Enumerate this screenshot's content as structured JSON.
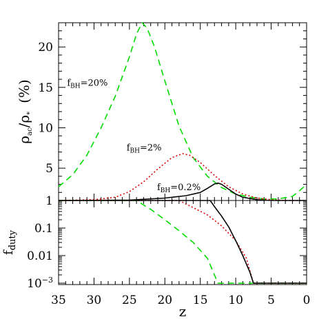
{
  "chart_data": [
    {
      "type": "line",
      "panel": "top",
      "ylabel_main": "ρ",
      "ylabel_sub1": "ac",
      "ylabel_mid": "/ρ",
      "ylabel_sub2": "*",
      "ylabel_unit": "(%)",
      "xlim": [
        35,
        0
      ],
      "ylim": [
        1,
        23
      ],
      "yticks": [
        {
          "value": 1,
          "label": "1"
        },
        {
          "value": 5,
          "label": "5"
        },
        {
          "value": 10,
          "label": "10"
        },
        {
          "value": 15,
          "label": "15"
        },
        {
          "value": 20,
          "label": "20"
        }
      ],
      "annotations": [
        {
          "main": "f",
          "sub": "BH",
          "rest": "=20%",
          "x": 33.8,
          "y": 15.2
        },
        {
          "main": "f",
          "sub": "BH",
          "rest": "=2%",
          "x": 25.4,
          "y": 7.2
        },
        {
          "main": "f",
          "sub": "BH",
          "rest": "=0.2%",
          "x": 21.1,
          "y": 2.3
        }
      ],
      "series": [
        {
          "color": "#00dd00",
          "dash": "9,6",
          "x": [
            35,
            33,
            31,
            29,
            27,
            25,
            24,
            23.2,
            22.5,
            21.5,
            20,
            18,
            16,
            14,
            12,
            10,
            8,
            6,
            4,
            2,
            1,
            0
          ],
          "y": [
            2.7,
            4.2,
            6.6,
            10.0,
            13.9,
            18.8,
            21.6,
            23.0,
            22.3,
            20.1,
            15.8,
            10.2,
            6.3,
            4.0,
            2.6,
            1.8,
            1.4,
            1.2,
            1.2,
            1.5,
            2.2,
            3.0
          ]
        },
        {
          "color": "#dd0000",
          "dash": "2,3",
          "x": [
            35,
            30,
            27,
            25,
            23,
            21,
            19,
            17.5,
            16.5,
            15,
            13,
            11,
            9,
            7,
            5,
            3,
            1,
            0
          ],
          "y": [
            1.0,
            1.1,
            1.4,
            2.1,
            3.3,
            4.9,
            6.3,
            6.8,
            6.6,
            5.7,
            4.1,
            2.7,
            1.8,
            1.3,
            1.1,
            1.0,
            1.0,
            1.0
          ]
        },
        {
          "color": "#000000",
          "dash": "",
          "x": [
            35,
            25,
            20,
            17,
            15,
            14,
            13,
            12.5,
            12,
            11,
            10,
            9,
            7,
            5,
            3,
            1,
            0
          ],
          "y": [
            1.0,
            1.05,
            1.3,
            1.6,
            2.0,
            2.5,
            3.05,
            3.15,
            3.0,
            2.4,
            1.8,
            1.4,
            1.1,
            1.0,
            1.0,
            1.0,
            1.0
          ]
        }
      ]
    },
    {
      "type": "line",
      "panel": "bottom",
      "xlabel": "z",
      "ylabel_main": "f",
      "ylabel_sub1": "duty",
      "xlim": [
        35,
        0
      ],
      "ylim_log10": [
        -3.05,
        0
      ],
      "xticks": [
        {
          "value": 35,
          "label": "35"
        },
        {
          "value": 30,
          "label": "30"
        },
        {
          "value": 25,
          "label": "25"
        },
        {
          "value": 20,
          "label": "20"
        },
        {
          "value": 15,
          "label": "15"
        },
        {
          "value": 10,
          "label": "10"
        },
        {
          "value": 5,
          "label": "5"
        },
        {
          "value": 0,
          "label": "0"
        }
      ],
      "yticks": [
        {
          "value": 0.1,
          "label": "0.1"
        },
        {
          "value": 0.01,
          "label": "0.01"
        }
      ],
      "ytick_exp": {
        "value": 0.001,
        "base": "10",
        "exp": "−3"
      },
      "series": [
        {
          "color": "#00dd00",
          "dash": "9,6",
          "x": [
            35,
            24,
            22,
            20,
            18,
            16,
            14,
            12.5,
            0
          ],
          "y": [
            1,
            1,
            0.48,
            0.2,
            0.08,
            0.03,
            0.008,
            0.001,
            0.001
          ]
        },
        {
          "color": "#dd0000",
          "dash": "2,3",
          "x": [
            35,
            18,
            16,
            14,
            12,
            10,
            8.5,
            7.5,
            0
          ],
          "y": [
            1,
            1,
            0.55,
            0.3,
            0.12,
            0.035,
            0.008,
            0.001,
            0.001
          ]
        },
        {
          "color": "#000000",
          "dash": "",
          "x": [
            35,
            13.6,
            13,
            12,
            11,
            10,
            9,
            8,
            7.5,
            0
          ],
          "y": [
            1,
            1,
            0.6,
            0.27,
            0.11,
            0.035,
            0.01,
            0.0025,
            0.001,
            0.001
          ]
        }
      ]
    }
  ]
}
